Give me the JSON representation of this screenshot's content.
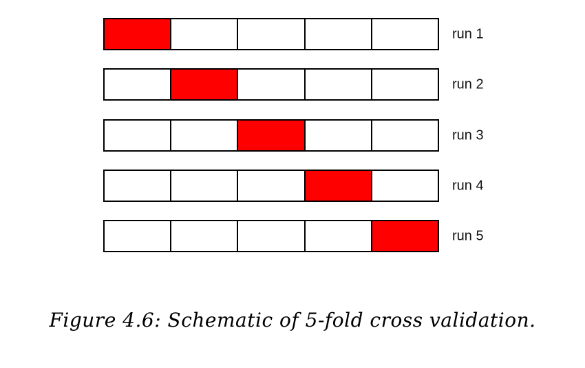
{
  "figure": {
    "test_fold_color": "#ff0000",
    "train_fold_color": "#ffffff",
    "folds_per_run": 5,
    "runs": [
      {
        "label": "run 1",
        "test_fold": 1
      },
      {
        "label": "run 2",
        "test_fold": 2
      },
      {
        "label": "run 3",
        "test_fold": 3
      },
      {
        "label": "run 4",
        "test_fold": 4
      },
      {
        "label": "run 5",
        "test_fold": 5
      }
    ],
    "caption": "Figure 4.6: Schematic of 5-fold cross validation."
  }
}
